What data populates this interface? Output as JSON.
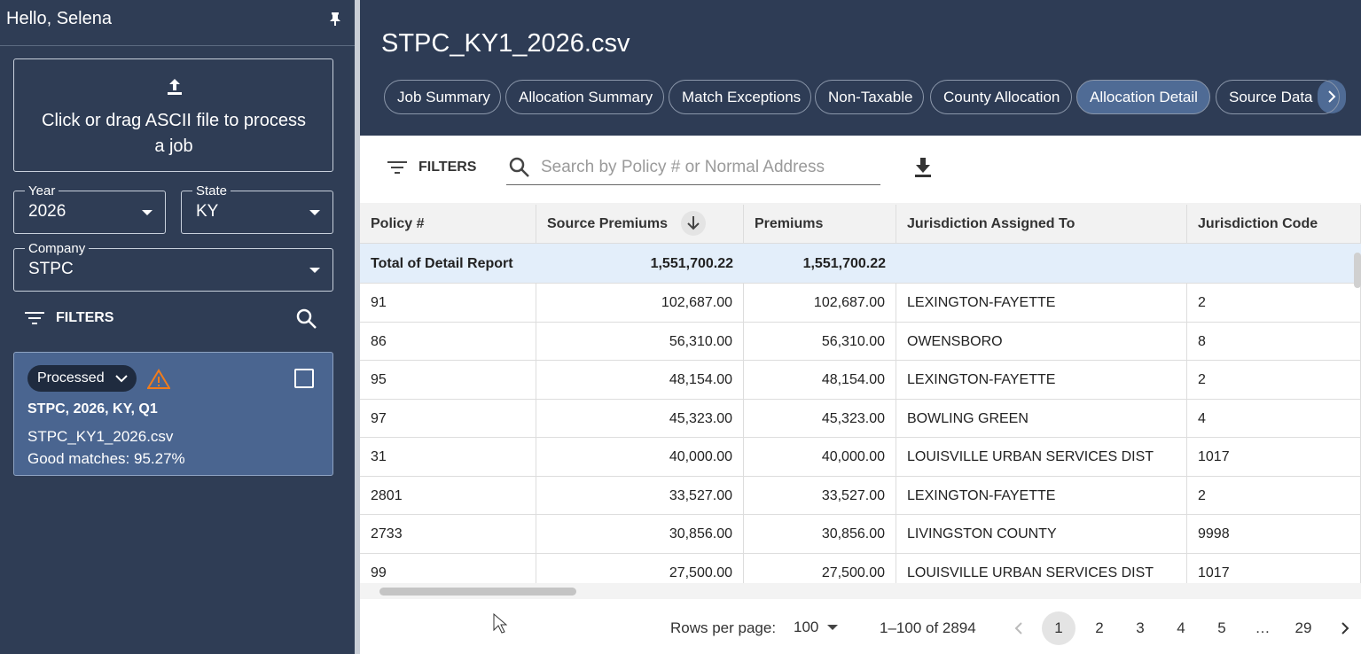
{
  "sidebar": {
    "greeting": "Hello, Selena",
    "upload_text": "Click or drag ASCII file to process a job",
    "year_label": "Year",
    "year": "2026",
    "state_label": "State",
    "state": "KY",
    "company_label": "Company",
    "company": "STPC",
    "filters": "FILTERS",
    "job": {
      "status": "Processed",
      "title": "STPC, 2026, KY, Q1",
      "file": "STPC_KY1_2026.csv",
      "matches": "Good matches: 95.27%"
    }
  },
  "main": {
    "title": "STPC_KY1_2026.csv",
    "tabs": [
      "Job Summary",
      "Allocation Summary",
      "Match Exceptions",
      "Non-Taxable",
      "County Allocation",
      "Allocation Detail",
      "Source Data"
    ],
    "active_tab": 5,
    "filters": "FILTERS",
    "search_placeholder": "Search by Policy # or Normal Address",
    "table": {
      "columns": [
        "Policy #",
        "Source Premiums",
        "Premiums",
        "Jurisdiction Assigned To",
        "Jurisdiction Code"
      ],
      "total_row": {
        "label": "Total of Detail Report",
        "source_premiums": "1,551,700.22",
        "premiums": "1,551,700.22"
      },
      "rows": [
        [
          "91",
          "102,687.00",
          "102,687.00",
          "LEXINGTON-FAYETTE",
          "2"
        ],
        [
          "86",
          "56,310.00",
          "56,310.00",
          "OWENSBORO",
          "8"
        ],
        [
          "95",
          "48,154.00",
          "48,154.00",
          "LEXINGTON-FAYETTE",
          "2"
        ],
        [
          "97",
          "45,323.00",
          "45,323.00",
          "BOWLING GREEN",
          "4"
        ],
        [
          "31",
          "40,000.00",
          "40,000.00",
          "LOUISVILLE URBAN SERVICES DIST",
          "1017"
        ],
        [
          "2801",
          "33,527.00",
          "33,527.00",
          "LEXINGTON-FAYETTE",
          "2"
        ],
        [
          "2733",
          "30,856.00",
          "30,856.00",
          "LIVINGSTON COUNTY",
          "9998"
        ],
        [
          "99",
          "27,500.00",
          "27,500.00",
          "LOUISVILLE URBAN SERVICES DIST",
          "1017"
        ]
      ]
    },
    "pagination": {
      "rows_per_page_label": "Rows per page:",
      "rows_per_page": "100",
      "range": "1–100 of 2894",
      "pages": [
        "1",
        "2",
        "3",
        "4",
        "5",
        "…",
        "29"
      ],
      "current_page": 0
    }
  }
}
